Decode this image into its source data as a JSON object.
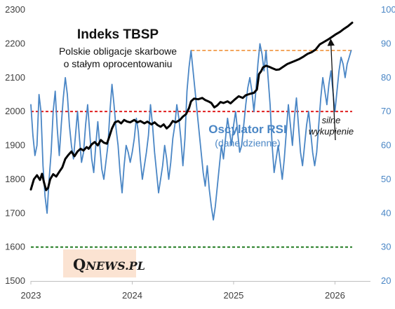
{
  "chart_data": {
    "type": "line",
    "title": "Indeks TBSP",
    "subtitle_lines": [
      "Polskie obligacje skarbowe",
      "o stałym oprocentowaniu"
    ],
    "left_axis": {
      "ylim": [
        1500,
        2300
      ],
      "ticks": [
        "1500",
        "1600",
        "1700",
        "1800",
        "1900",
        "2000",
        "2100",
        "2200",
        "2300"
      ]
    },
    "right_axis": {
      "ylim": [
        20,
        100
      ],
      "ticks": [
        "20",
        "30",
        "40",
        "50",
        "60",
        "70",
        "80",
        "90",
        "100"
      ]
    },
    "x_axis": {
      "range": [
        2023.0,
        2026.35
      ],
      "ticks": [
        {
          "value": 2023,
          "label": "2023"
        },
        {
          "value": 2024,
          "label": "2024"
        },
        {
          "value": 2025,
          "label": "2025"
        },
        {
          "value": 2026,
          "label": "2026"
        }
      ]
    },
    "series": [
      {
        "axis": "left",
        "color": "#000000",
        "points": [
          [
            2023.0,
            1770
          ],
          [
            2023.03,
            1800
          ],
          [
            2023.06,
            1812
          ],
          [
            2023.09,
            1798
          ],
          [
            2023.11,
            1816
          ],
          [
            2023.13,
            1790
          ],
          [
            2023.15,
            1768
          ],
          [
            2023.17,
            1775
          ],
          [
            2023.19,
            1800
          ],
          [
            2023.22,
            1815
          ],
          [
            2023.25,
            1808
          ],
          [
            2023.28,
            1822
          ],
          [
            2023.31,
            1835
          ],
          [
            2023.34,
            1860
          ],
          [
            2023.37,
            1872
          ],
          [
            2023.4,
            1882
          ],
          [
            2023.43,
            1868
          ],
          [
            2023.46,
            1882
          ],
          [
            2023.49,
            1890
          ],
          [
            2023.52,
            1885
          ],
          [
            2023.55,
            1895
          ],
          [
            2023.57,
            1890
          ],
          [
            2023.6,
            1903
          ],
          [
            2023.63,
            1910
          ],
          [
            2023.66,
            1900
          ],
          [
            2023.69,
            1916
          ],
          [
            2023.72,
            1908
          ],
          [
            2023.75,
            1905
          ],
          [
            2023.77,
            1922
          ],
          [
            2023.8,
            1950
          ],
          [
            2023.83,
            1968
          ],
          [
            2023.86,
            1972
          ],
          [
            2023.89,
            1965
          ],
          [
            2023.92,
            1975
          ],
          [
            2023.95,
            1970
          ],
          [
            2023.98,
            1968
          ],
          [
            2024.02,
            1975
          ],
          [
            2024.05,
            1968
          ],
          [
            2024.08,
            1972
          ],
          [
            2024.12,
            1965
          ],
          [
            2024.15,
            1970
          ],
          [
            2024.19,
            1962
          ],
          [
            2024.22,
            1968
          ],
          [
            2024.25,
            1960
          ],
          [
            2024.28,
            1955
          ],
          [
            2024.31,
            1962
          ],
          [
            2024.34,
            1950
          ],
          [
            2024.37,
            1958
          ],
          [
            2024.4,
            1972
          ],
          [
            2024.43,
            1968
          ],
          [
            2024.47,
            1975
          ],
          [
            2024.5,
            1985
          ],
          [
            2024.53,
            1992
          ],
          [
            2024.56,
            2010
          ],
          [
            2024.58,
            2030
          ],
          [
            2024.61,
            2038
          ],
          [
            2024.65,
            2036
          ],
          [
            2024.69,
            2040
          ],
          [
            2024.72,
            2034
          ],
          [
            2024.75,
            2030
          ],
          [
            2024.78,
            2025
          ],
          [
            2024.81,
            2012
          ],
          [
            2024.84,
            2018
          ],
          [
            2024.87,
            2028
          ],
          [
            2024.9,
            2025
          ],
          [
            2024.94,
            2030
          ],
          [
            2024.97,
            2024
          ],
          [
            2025.01,
            2035
          ],
          [
            2025.05,
            2045
          ],
          [
            2025.09,
            2040
          ],
          [
            2025.12,
            2048
          ],
          [
            2025.16,
            2052
          ],
          [
            2025.2,
            2055
          ],
          [
            2025.23,
            2065
          ],
          [
            2025.25,
            2110
          ],
          [
            2025.27,
            2118
          ],
          [
            2025.29,
            2130
          ],
          [
            2025.32,
            2135
          ],
          [
            2025.35,
            2132
          ],
          [
            2025.38,
            2128
          ],
          [
            2025.42,
            2123
          ],
          [
            2025.45,
            2124
          ],
          [
            2025.49,
            2132
          ],
          [
            2025.53,
            2140
          ],
          [
            2025.57,
            2145
          ],
          [
            2025.61,
            2150
          ],
          [
            2025.65,
            2155
          ],
          [
            2025.69,
            2162
          ],
          [
            2025.73,
            2170
          ],
          [
            2025.77,
            2175
          ],
          [
            2025.81,
            2183
          ],
          [
            2025.85,
            2198
          ],
          [
            2025.89,
            2205
          ],
          [
            2025.93,
            2212
          ],
          [
            2025.97,
            2220
          ],
          [
            2026.01,
            2228
          ],
          [
            2026.05,
            2235
          ],
          [
            2026.09,
            2244
          ],
          [
            2026.13,
            2252
          ],
          [
            2026.17,
            2262
          ]
        ]
      },
      {
        "axis": "right",
        "color": "#4a86c5",
        "points": [
          [
            2023.0,
            72
          ],
          [
            2023.02,
            63
          ],
          [
            2023.04,
            57
          ],
          [
            2023.06,
            60
          ],
          [
            2023.08,
            75
          ],
          [
            2023.1,
            70
          ],
          [
            2023.12,
            54
          ],
          [
            2023.14,
            45
          ],
          [
            2023.16,
            40
          ],
          [
            2023.18,
            50
          ],
          [
            2023.2,
            58
          ],
          [
            2023.22,
            70
          ],
          [
            2023.24,
            76
          ],
          [
            2023.26,
            65
          ],
          [
            2023.28,
            57
          ],
          [
            2023.3,
            66
          ],
          [
            2023.32,
            74
          ],
          [
            2023.34,
            80
          ],
          [
            2023.36,
            75
          ],
          [
            2023.38,
            66
          ],
          [
            2023.4,
            60
          ],
          [
            2023.42,
            56
          ],
          [
            2023.44,
            63
          ],
          [
            2023.46,
            70
          ],
          [
            2023.48,
            62
          ],
          [
            2023.5,
            55
          ],
          [
            2023.52,
            58
          ],
          [
            2023.54,
            66
          ],
          [
            2023.56,
            72
          ],
          [
            2023.58,
            64
          ],
          [
            2023.6,
            56
          ],
          [
            2023.62,
            52
          ],
          [
            2023.64,
            60
          ],
          [
            2023.66,
            67
          ],
          [
            2023.68,
            60
          ],
          [
            2023.7,
            53
          ],
          [
            2023.72,
            50
          ],
          [
            2023.74,
            55
          ],
          [
            2023.76,
            60
          ],
          [
            2023.78,
            70
          ],
          [
            2023.8,
            78
          ],
          [
            2023.82,
            72
          ],
          [
            2023.84,
            65
          ],
          [
            2023.86,
            60
          ],
          [
            2023.88,
            52
          ],
          [
            2023.9,
            46
          ],
          [
            2023.92,
            54
          ],
          [
            2023.94,
            60
          ],
          [
            2023.96,
            58
          ],
          [
            2023.98,
            55
          ],
          [
            2024.0,
            58
          ],
          [
            2024.02,
            62
          ],
          [
            2024.04,
            68
          ],
          [
            2024.06,
            64
          ],
          [
            2024.08,
            56
          ],
          [
            2024.1,
            50
          ],
          [
            2024.12,
            54
          ],
          [
            2024.14,
            58
          ],
          [
            2024.16,
            63
          ],
          [
            2024.18,
            72
          ],
          [
            2024.2,
            66
          ],
          [
            2024.22,
            58
          ],
          [
            2024.24,
            52
          ],
          [
            2024.26,
            46
          ],
          [
            2024.28,
            50
          ],
          [
            2024.3,
            54
          ],
          [
            2024.32,
            60
          ],
          [
            2024.34,
            56
          ],
          [
            2024.36,
            50
          ],
          [
            2024.38,
            55
          ],
          [
            2024.4,
            62
          ],
          [
            2024.42,
            66
          ],
          [
            2024.44,
            72
          ],
          [
            2024.46,
            68
          ],
          [
            2024.48,
            62
          ],
          [
            2024.5,
            54
          ],
          [
            2024.52,
            62
          ],
          [
            2024.54,
            76
          ],
          [
            2024.56,
            83
          ],
          [
            2024.58,
            88
          ],
          [
            2024.6,
            82
          ],
          [
            2024.62,
            76
          ],
          [
            2024.64,
            70
          ],
          [
            2024.66,
            64
          ],
          [
            2024.68,
            58
          ],
          [
            2024.7,
            52
          ],
          [
            2024.72,
            48
          ],
          [
            2024.74,
            54
          ],
          [
            2024.76,
            47
          ],
          [
            2024.78,
            42
          ],
          [
            2024.8,
            38
          ],
          [
            2024.82,
            42
          ],
          [
            2024.84,
            48
          ],
          [
            2024.86,
            54
          ],
          [
            2024.88,
            60
          ],
          [
            2024.9,
            56
          ],
          [
            2024.92,
            62
          ],
          [
            2024.94,
            68
          ],
          [
            2024.96,
            64
          ],
          [
            2024.98,
            60
          ],
          [
            2025.0,
            66
          ],
          [
            2025.02,
            70
          ],
          [
            2025.04,
            64
          ],
          [
            2025.06,
            58
          ],
          [
            2025.08,
            60
          ],
          [
            2025.1,
            66
          ],
          [
            2025.12,
            72
          ],
          [
            2025.14,
            77
          ],
          [
            2025.16,
            80
          ],
          [
            2025.18,
            76
          ],
          [
            2025.2,
            70
          ],
          [
            2025.22,
            76
          ],
          [
            2025.24,
            84
          ],
          [
            2025.26,
            90
          ],
          [
            2025.28,
            87
          ],
          [
            2025.3,
            82
          ],
          [
            2025.32,
            88
          ],
          [
            2025.34,
            80
          ],
          [
            2025.36,
            72
          ],
          [
            2025.38,
            60
          ],
          [
            2025.4,
            52
          ],
          [
            2025.42,
            56
          ],
          [
            2025.44,
            60
          ],
          [
            2025.46,
            55
          ],
          [
            2025.48,
            50
          ],
          [
            2025.5,
            56
          ],
          [
            2025.52,
            64
          ],
          [
            2025.54,
            72
          ],
          [
            2025.56,
            66
          ],
          [
            2025.58,
            60
          ],
          [
            2025.6,
            68
          ],
          [
            2025.62,
            74
          ],
          [
            2025.64,
            66
          ],
          [
            2025.66,
            58
          ],
          [
            2025.68,
            54
          ],
          [
            2025.7,
            60
          ],
          [
            2025.72,
            66
          ],
          [
            2025.74,
            70
          ],
          [
            2025.76,
            64
          ],
          [
            2025.78,
            58
          ],
          [
            2025.8,
            54
          ],
          [
            2025.82,
            58
          ],
          [
            2025.84,
            66
          ],
          [
            2025.86,
            74
          ],
          [
            2025.88,
            80
          ],
          [
            2025.9,
            76
          ],
          [
            2025.92,
            72
          ],
          [
            2025.94,
            78
          ],
          [
            2025.96,
            82
          ],
          [
            2025.98,
            76
          ],
          [
            2026.0,
            70
          ],
          [
            2026.02,
            76
          ],
          [
            2026.04,
            82
          ],
          [
            2026.06,
            86
          ],
          [
            2026.08,
            84
          ],
          [
            2026.1,
            80
          ],
          [
            2026.12,
            84
          ],
          [
            2026.14,
            86
          ],
          [
            2026.16,
            88
          ]
        ]
      }
    ],
    "reference_lines": [
      {
        "axis": "right",
        "value": 30,
        "color": "#1f7a1f",
        "x_start": 2023.0,
        "x_end": 2026.17
      },
      {
        "axis": "right",
        "value": 70,
        "color": "#e02020",
        "x_start": 2023.0,
        "x_end": 2026.17
      },
      {
        "axis": "right",
        "value": 88,
        "color": "#f0923a",
        "x_start": 2024.58,
        "x_end": 2026.17
      }
    ],
    "rsi_label": {
      "title": "Oscylator RSI",
      "subtitle": "(dane dzienne)"
    },
    "annotation": {
      "lines": [
        "silne",
        "wykupienie"
      ],
      "arrow_to": [
        2026.0,
        91
      ]
    },
    "logo": {
      "q": "Q",
      "rest": "NEWS.PL",
      "background": "#fbe3d2"
    },
    "colors": {
      "price": "#000000",
      "rsi": "#4a86c5",
      "oversold": "#1f7a1f",
      "overbought": "#e02020",
      "extreme": "#f0923a"
    }
  }
}
